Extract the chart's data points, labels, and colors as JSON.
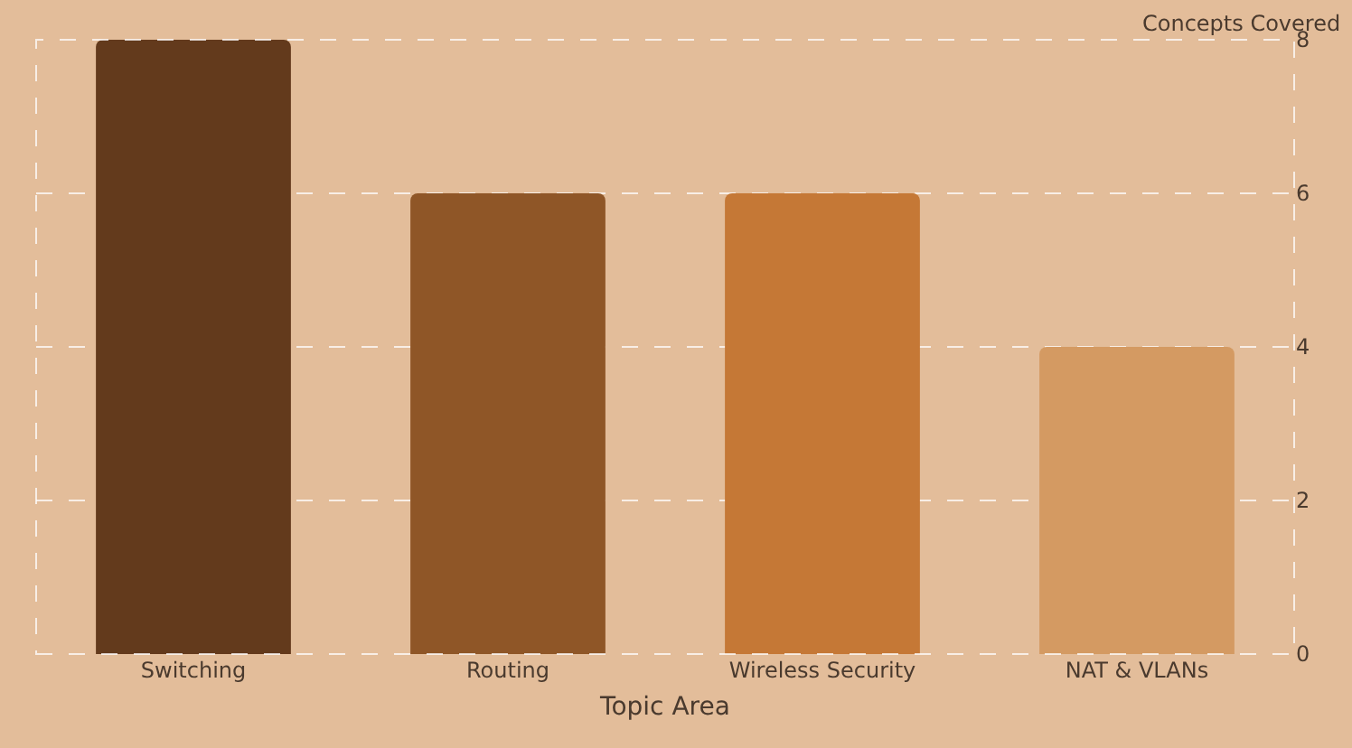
{
  "chart_data": {
    "type": "bar",
    "xlabel": "Topic Area",
    "ylabel": "Concepts Covered",
    "categories": [
      "Switching",
      "Routing",
      "Wireless Security",
      "NAT & VLANs"
    ],
    "values": [
      8,
      6,
      6,
      4
    ],
    "colors": [
      "#633a1c",
      "#8f5627",
      "#c57836",
      "#d49a62"
    ],
    "ylim": [
      0,
      8
    ],
    "yticks": [
      0,
      2,
      4,
      6,
      8
    ],
    "grid": "y"
  }
}
